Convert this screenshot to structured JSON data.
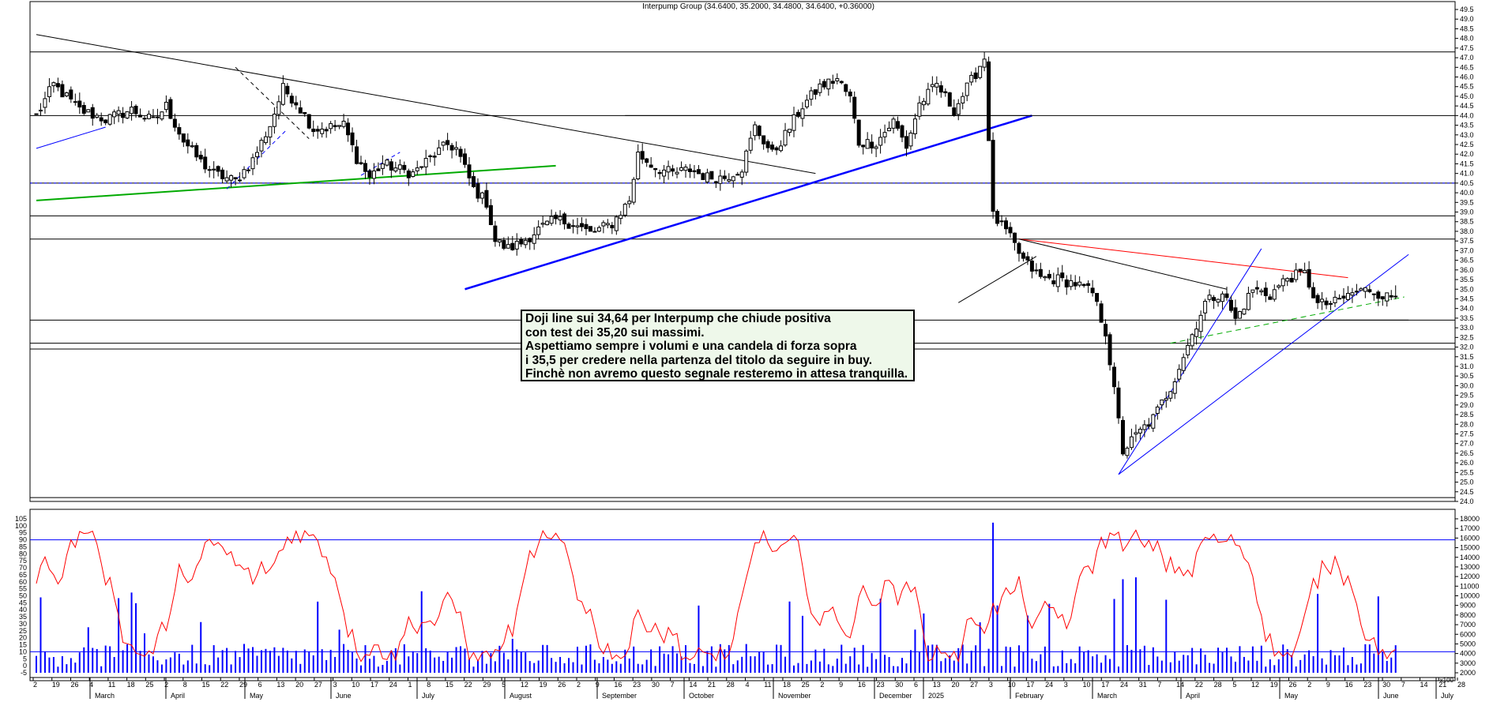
{
  "title": "Interpump Group (34.6400, 35.2000, 34.4800, 34.6400, +0.36000)",
  "note": {
    "lines": [
      "Doji line sui 34,64 per Interpump che chiude positiva",
      "con test dei 35,20 sui massimi.",
      "Aspettiamo sempre i volumi e una candela di forza sopra",
      "i 35,5 per credere nella partenza del titolo da seguire in buy.",
      "Finchè non avremo questo segnale resteremo in attesa tranquilla."
    ]
  },
  "colors": {
    "background": "#ffffff",
    "candle": "#000000",
    "trend_blue": "#0000ff",
    "trend_green": "#00aa00",
    "trend_red": "#ff0000",
    "oscillator": "#ff0000",
    "volume": "#0000ff",
    "note_bg": "#eef8ea"
  },
  "axes": {
    "price_ticks": [
      "24.0",
      "24.5",
      "25.0",
      "25.5",
      "26.0",
      "26.5",
      "27.0",
      "27.5",
      "28.0",
      "28.5",
      "29.0",
      "29.5",
      "30.0",
      "30.5",
      "31.0",
      "31.5",
      "32.0",
      "32.5",
      "33.0",
      "33.5",
      "34.0",
      "34.5",
      "35.0",
      "35.5",
      "36.0",
      "36.5",
      "37.0",
      "37.5",
      "38.0",
      "38.5",
      "39.0",
      "39.5",
      "40.0",
      "40.5",
      "41.0",
      "41.5",
      "42.0",
      "42.5",
      "43.0",
      "43.5",
      "44.0",
      "44.5",
      "45.0",
      "45.5",
      "46.0",
      "46.5",
      "47.0",
      "47.5",
      "48.0",
      "48.5",
      "49.0",
      "49.5"
    ],
    "osc_ticks": [
      "-5",
      "0",
      "5",
      "10",
      "15",
      "20",
      "25",
      "30",
      "35",
      "40",
      "45",
      "50",
      "55",
      "60",
      "65",
      "70",
      "75",
      "80",
      "85",
      "90",
      "95",
      "100",
      "105"
    ],
    "vol_ticks": [
      "2000",
      "3000",
      "4000",
      "5000",
      "6000",
      "7000",
      "8000",
      "9000",
      "10000",
      "11000",
      "12000",
      "13000",
      "14000",
      "15000",
      "16000",
      "17000",
      "18000"
    ],
    "vol_unit": "x100",
    "date_ticks": [
      "2",
      "19",
      "26",
      "4",
      "11",
      "18",
      "25",
      "2",
      "8",
      "15",
      "22",
      "29",
      "6",
      "13",
      "20",
      "27",
      "3",
      "10",
      "17",
      "24",
      "1",
      "8",
      "15",
      "22",
      "29",
      "5",
      "12",
      "19",
      "26",
      "2",
      "9",
      "16",
      "23",
      "30",
      "7",
      "14",
      "21",
      "28",
      "4",
      "11",
      "18",
      "25",
      "2",
      "9",
      "16",
      "23",
      "30",
      "6",
      "13",
      "20",
      "27",
      "3",
      "10",
      "17",
      "24",
      "3",
      "10",
      "17",
      "24",
      "31",
      "7",
      "14",
      "22",
      "28",
      "5",
      "12",
      "19",
      "26",
      "2",
      "9",
      "16",
      "23",
      "30",
      "7",
      "14",
      "21",
      "28"
    ],
    "month_labels": [
      "March",
      "April",
      "May",
      "June",
      "July",
      "August",
      "September",
      "October",
      "November",
      "December",
      "2025",
      "February",
      "March",
      "April",
      "May",
      "June",
      "July"
    ]
  },
  "chart_data": {
    "type": "candlestick",
    "title": "Interpump Group (34.6400, 35.2000, 34.4800, 34.6400, +0.36000)",
    "ylim_price": [
      24.0,
      49.5
    ],
    "ylim_oscillator": [
      -5,
      105
    ],
    "ylim_volume": [
      2000,
      18000
    ],
    "last_bar": {
      "open": 34.64,
      "high": 35.2,
      "low": 34.48,
      "close": 34.64,
      "change": 0.36
    },
    "horizontal_levels": [
      47.3,
      44.0,
      40.5,
      38.8,
      37.6,
      33.4,
      32.2,
      31.9,
      24.2
    ],
    "oscillator_levels": [
      90,
      10
    ],
    "anchors": [
      {
        "d": 0,
        "p": 44.0
      },
      {
        "d": 4,
        "p": 45.6
      },
      {
        "d": 10,
        "p": 44.3
      },
      {
        "d": 16,
        "p": 43.8
      },
      {
        "d": 22,
        "p": 44.3
      },
      {
        "d": 27,
        "p": 43.7
      },
      {
        "d": 30,
        "p": 44.5
      },
      {
        "d": 34,
        "p": 42.7
      },
      {
        "d": 38,
        "p": 41.6
      },
      {
        "d": 41,
        "p": 41.0
      },
      {
        "d": 46,
        "p": 40.6
      },
      {
        "d": 50,
        "p": 41.7
      },
      {
        "d": 54,
        "p": 43.5
      },
      {
        "d": 57,
        "p": 45.4
      },
      {
        "d": 60,
        "p": 44.7
      },
      {
        "d": 64,
        "p": 43.3
      },
      {
        "d": 68,
        "p": 43.4
      },
      {
        "d": 71,
        "p": 43.5
      },
      {
        "d": 74,
        "p": 41.8
      },
      {
        "d": 77,
        "p": 40.8
      },
      {
        "d": 80,
        "p": 41.5
      },
      {
        "d": 84,
        "p": 41.2
      },
      {
        "d": 87,
        "p": 41.0
      },
      {
        "d": 91,
        "p": 41.8
      },
      {
        "d": 95,
        "p": 42.5
      },
      {
        "d": 97,
        "p": 42.3
      },
      {
        "d": 101,
        "p": 40.2
      },
      {
        "d": 104,
        "p": 39.5
      },
      {
        "d": 106,
        "p": 37.5
      },
      {
        "d": 109,
        "p": 37.1
      },
      {
        "d": 112,
        "p": 37.4
      },
      {
        "d": 116,
        "p": 38.1
      },
      {
        "d": 120,
        "p": 38.6
      },
      {
        "d": 124,
        "p": 38.4
      },
      {
        "d": 128,
        "p": 37.9
      },
      {
        "d": 133,
        "p": 38.4
      },
      {
        "d": 137,
        "p": 39.6
      },
      {
        "d": 139,
        "p": 42.0
      },
      {
        "d": 143,
        "p": 41.3
      },
      {
        "d": 147,
        "p": 41.0
      },
      {
        "d": 151,
        "p": 41.2
      },
      {
        "d": 155,
        "p": 40.8
      },
      {
        "d": 159,
        "p": 40.8
      },
      {
        "d": 163,
        "p": 41.3
      },
      {
        "d": 166,
        "p": 43.4
      },
      {
        "d": 170,
        "p": 42.0
      },
      {
        "d": 173,
        "p": 43.0
      },
      {
        "d": 177,
        "p": 44.5
      },
      {
        "d": 181,
        "p": 45.5
      },
      {
        "d": 185,
        "p": 45.9
      },
      {
        "d": 188,
        "p": 44.9
      },
      {
        "d": 190,
        "p": 42.6
      },
      {
        "d": 194,
        "p": 42.6
      },
      {
        "d": 198,
        "p": 43.7
      },
      {
        "d": 201,
        "p": 42.4
      },
      {
        "d": 204,
        "p": 44.6
      },
      {
        "d": 208,
        "p": 45.6
      },
      {
        "d": 212,
        "p": 44.3
      },
      {
        "d": 216,
        "p": 45.8
      },
      {
        "d": 219,
        "p": 47.0
      },
      {
        "d": 221,
        "p": 38.8
      },
      {
        "d": 224,
        "p": 38.0
      },
      {
        "d": 228,
        "p": 36.5
      },
      {
        "d": 232,
        "p": 35.6
      },
      {
        "d": 236,
        "p": 35.5
      },
      {
        "d": 240,
        "p": 35.3
      },
      {
        "d": 244,
        "p": 34.8
      },
      {
        "d": 247,
        "p": 32.8
      },
      {
        "d": 251,
        "p": 26.6
      },
      {
        "d": 254,
        "p": 27.4
      },
      {
        "d": 258,
        "p": 28.3
      },
      {
        "d": 262,
        "p": 29.9
      },
      {
        "d": 266,
        "p": 32.1
      },
      {
        "d": 270,
        "p": 34.3
      },
      {
        "d": 274,
        "p": 34.9
      },
      {
        "d": 277,
        "p": 33.4
      },
      {
        "d": 281,
        "p": 35.0
      },
      {
        "d": 285,
        "p": 34.7
      },
      {
        "d": 289,
        "p": 35.6
      },
      {
        "d": 293,
        "p": 35.8
      },
      {
        "d": 296,
        "p": 34.2
      },
      {
        "d": 300,
        "p": 34.3
      },
      {
        "d": 304,
        "p": 34.8
      },
      {
        "d": 308,
        "p": 35.0
      },
      {
        "d": 312,
        "p": 34.6
      },
      {
        "d": 314,
        "p": 34.6
      }
    ]
  }
}
